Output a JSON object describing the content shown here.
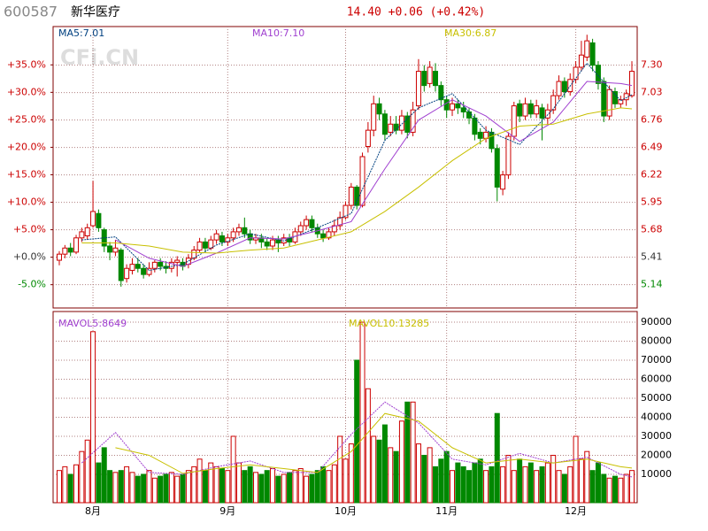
{
  "chart_data": {
    "type": "candlestick",
    "code": "600587",
    "name": "新华医疗",
    "quote": "14.40 +0.06 (+0.42%)",
    "watermark": "CFi.CN",
    "categories": [
      null,
      null,
      null,
      null,
      null,
      null,
      "8月",
      null,
      null,
      null,
      null,
      null,
      null,
      null,
      null,
      null,
      null,
      null,
      null,
      null,
      null,
      null,
      null,
      null,
      null,
      null,
      null,
      null,
      null,
      null,
      "9月",
      null,
      null,
      null,
      null,
      null,
      null,
      null,
      null,
      null,
      null,
      null,
      null,
      null,
      null,
      null,
      null,
      null,
      null,
      null,
      null,
      "10月",
      null,
      null,
      null,
      null,
      null,
      null,
      null,
      null,
      null,
      null,
      null,
      null,
      null,
      null,
      null,
      null,
      null,
      "11月",
      null,
      null,
      null,
      null,
      null,
      null,
      null,
      null,
      null,
      null,
      null,
      null,
      null,
      null,
      null,
      null,
      null,
      null,
      null,
      null,
      null,
      null,
      "12月",
      null,
      null,
      null,
      null,
      null,
      null,
      null,
      null,
      null,
      null
    ],
    "open": [
      5.38,
      5.44,
      5.5,
      5.46,
      5.6,
      5.62,
      5.72,
      5.84,
      5.68,
      5.52,
      5.46,
      5.48,
      5.2,
      5.28,
      5.34,
      5.3,
      5.24,
      5.3,
      5.36,
      5.32,
      5.3,
      5.36,
      5.36,
      5.34,
      5.4,
      5.48,
      5.56,
      5.5,
      5.58,
      5.62,
      5.56,
      5.6,
      5.66,
      5.7,
      5.64,
      5.58,
      5.6,
      5.56,
      5.52,
      5.58,
      5.55,
      5.6,
      5.56,
      5.66,
      5.72,
      5.78,
      5.7,
      5.64,
      5.6,
      5.66,
      5.72,
      5.8,
      5.92,
      6.1,
      5.92,
      6.5,
      6.66,
      6.92,
      6.82,
      6.64,
      6.72,
      6.66,
      6.8,
      6.64,
      6.9,
      7.24,
      7.12,
      7.24,
      7.1,
      6.96,
      6.86,
      6.92,
      6.88,
      6.84,
      6.78,
      6.64,
      6.58,
      6.64,
      6.48,
      6.08,
      6.22,
      6.6,
      6.92,
      6.8,
      6.92,
      6.82,
      6.88,
      6.78,
      6.86,
      7.0,
      7.14,
      7.04,
      7.16,
      7.28,
      7.38,
      7.52,
      7.3,
      7.14,
      6.8,
      7.04,
      6.92,
      6.96,
      7.0
    ],
    "high": [
      5.47,
      5.53,
      5.55,
      5.63,
      5.7,
      5.74,
      6.16,
      5.88,
      5.7,
      5.56,
      5.58,
      5.5,
      5.34,
      5.4,
      5.4,
      5.34,
      5.36,
      5.38,
      5.4,
      5.37,
      5.4,
      5.42,
      5.4,
      5.44,
      5.52,
      5.6,
      5.6,
      5.62,
      5.68,
      5.66,
      5.64,
      5.7,
      5.74,
      5.8,
      5.68,
      5.64,
      5.64,
      5.6,
      5.62,
      5.62,
      5.64,
      5.64,
      5.7,
      5.76,
      5.82,
      5.82,
      5.74,
      5.68,
      5.7,
      5.78,
      5.86,
      5.96,
      6.14,
      6.12,
      6.44,
      6.74,
      7.0,
      6.98,
      6.86,
      6.8,
      6.8,
      6.86,
      6.84,
      6.94,
      7.36,
      7.3,
      7.34,
      7.32,
      7.14,
      7.0,
      6.98,
      6.96,
      6.94,
      6.88,
      6.82,
      6.68,
      6.7,
      6.68,
      6.52,
      6.26,
      6.64,
      6.94,
      6.96,
      6.98,
      6.96,
      6.96,
      6.92,
      6.92,
      7.06,
      7.2,
      7.18,
      7.22,
      7.34,
      7.54,
      7.6,
      7.56,
      7.34,
      7.18,
      7.1,
      7.08,
      7.0,
      7.06,
      7.34
    ],
    "low": [
      5.33,
      5.4,
      5.42,
      5.44,
      5.56,
      5.58,
      5.7,
      5.66,
      5.46,
      5.38,
      5.42,
      5.12,
      5.16,
      5.24,
      5.26,
      5.2,
      5.22,
      5.26,
      5.28,
      5.25,
      5.26,
      5.22,
      5.28,
      5.3,
      5.38,
      5.46,
      5.46,
      5.48,
      5.54,
      5.52,
      5.52,
      5.56,
      5.62,
      5.6,
      5.54,
      5.54,
      5.5,
      5.48,
      5.48,
      5.46,
      5.52,
      5.52,
      5.54,
      5.62,
      5.68,
      5.66,
      5.6,
      5.56,
      5.58,
      5.62,
      5.68,
      5.78,
      5.88,
      5.88,
      5.9,
      6.44,
      6.6,
      6.76,
      6.56,
      6.6,
      6.62,
      6.62,
      6.58,
      6.6,
      6.86,
      7.04,
      7.08,
      7.04,
      6.9,
      6.78,
      6.8,
      6.82,
      6.78,
      6.72,
      6.56,
      6.52,
      6.54,
      6.44,
      5.96,
      6.02,
      6.18,
      6.56,
      6.74,
      6.76,
      6.78,
      6.78,
      6.56,
      6.72,
      6.82,
      6.96,
      6.98,
      7.0,
      7.12,
      7.24,
      7.34,
      7.24,
      7.06,
      6.74,
      6.76,
      6.88,
      6.88,
      6.9,
      6.98
    ],
    "close": [
      5.44,
      5.5,
      5.46,
      5.6,
      5.66,
      5.7,
      5.86,
      5.7,
      5.52,
      5.46,
      5.5,
      5.18,
      5.3,
      5.34,
      5.3,
      5.24,
      5.3,
      5.36,
      5.32,
      5.3,
      5.36,
      5.38,
      5.32,
      5.4,
      5.48,
      5.56,
      5.5,
      5.58,
      5.64,
      5.56,
      5.6,
      5.66,
      5.7,
      5.64,
      5.58,
      5.6,
      5.56,
      5.52,
      5.58,
      5.55,
      5.6,
      5.56,
      5.66,
      5.72,
      5.78,
      5.7,
      5.64,
      5.6,
      5.66,
      5.72,
      5.8,
      5.92,
      6.1,
      5.92,
      6.4,
      6.66,
      6.92,
      6.82,
      6.62,
      6.72,
      6.66,
      6.8,
      6.64,
      6.86,
      7.24,
      7.1,
      7.28,
      7.1,
      6.96,
      6.86,
      6.92,
      6.88,
      6.84,
      6.78,
      6.62,
      6.58,
      6.64,
      6.48,
      6.1,
      6.22,
      6.6,
      6.9,
      6.8,
      6.92,
      6.82,
      6.9,
      6.78,
      6.86,
      7.0,
      7.14,
      7.04,
      7.16,
      7.28,
      7.4,
      7.54,
      7.3,
      7.12,
      6.8,
      7.06,
      6.92,
      6.96,
      7.02,
      7.24
    ],
    "volume": [
      12000,
      14000,
      10000,
      15000,
      22000,
      28000,
      85000,
      16000,
      24000,
      12000,
      11000,
      12000,
      14000,
      11000,
      9000,
      10000,
      12000,
      8000,
      9000,
      10000,
      11000,
      9000,
      10000,
      12000,
      14000,
      18000,
      12000,
      16000,
      14000,
      13000,
      12000,
      30000,
      16000,
      12000,
      14000,
      11000,
      10000,
      12000,
      13000,
      9000,
      10000,
      11000,
      12000,
      13000,
      9000,
      10000,
      12000,
      14000,
      12000,
      15000,
      30000,
      18000,
      26000,
      70000,
      90000,
      55000,
      30000,
      28000,
      36000,
      24000,
      22000,
      38000,
      48000,
      48000,
      26000,
      20000,
      24000,
      14000,
      18000,
      22000,
      12000,
      16000,
      14000,
      12000,
      16000,
      18000,
      12000,
      14000,
      42000,
      14000,
      20000,
      12000,
      18000,
      14000,
      16000,
      12000,
      14000,
      16000,
      20000,
      12000,
      10000,
      14000,
      30000,
      18000,
      22000,
      12000,
      16000,
      10000,
      8000,
      9000,
      8000,
      10000,
      12000
    ],
    "up_color": "#cc0000",
    "down_color": "#008800",
    "ma": [
      {
        "name": "MA5:7.01",
        "color": "#004080",
        "x": [
          4,
          10,
          16,
          22,
          28,
          34,
          40,
          46,
          52,
          58,
          64,
          70,
          76,
          82,
          88,
          94,
          100,
          102
        ],
        "values": [
          5.58,
          5.61,
          5.28,
          5.34,
          5.53,
          5.64,
          5.57,
          5.7,
          5.84,
          6.56,
          6.88,
          7.02,
          6.66,
          6.52,
          6.87,
          7.32,
          6.95,
          7.01
        ]
      },
      {
        "name": "MA10:7.10",
        "color": "#a040d0",
        "x": [
          10,
          16,
          22,
          28,
          34,
          40,
          46,
          52,
          58,
          64,
          70,
          76,
          82,
          88,
          94,
          100,
          102
        ],
        "values": [
          5.58,
          5.4,
          5.32,
          5.45,
          5.6,
          5.59,
          5.67,
          5.76,
          6.28,
          6.76,
          6.96,
          6.8,
          6.55,
          6.74,
          7.14,
          7.12,
          7.1
        ]
      },
      {
        "name": "MA30:6.87",
        "color": "#c8c000",
        "x": [
          4,
          10,
          16,
          22,
          28,
          34,
          40,
          46,
          52,
          58,
          64,
          70,
          76,
          82,
          88,
          94,
          100,
          102
        ],
        "values": [
          5.55,
          5.55,
          5.52,
          5.46,
          5.45,
          5.48,
          5.5,
          5.58,
          5.66,
          5.86,
          6.1,
          6.36,
          6.58,
          6.7,
          6.72,
          6.82,
          6.88,
          6.87
        ]
      }
    ],
    "vol_ma": [
      {
        "name": "MAVOL5:8649",
        "color": "#a040d0",
        "x": [
          4,
          10,
          16,
          22,
          28,
          34,
          40,
          46,
          52,
          58,
          64,
          70,
          76,
          82,
          88,
          94,
          100,
          102
        ],
        "values": [
          16000,
          32000,
          11000,
          10000,
          14000,
          17000,
          11000,
          11000,
          31000,
          48000,
          37000,
          18000,
          15000,
          21000,
          16000,
          19000,
          10000,
          8649
        ]
      },
      {
        "name": "MAVOL10:13285",
        "color": "#c8c000",
        "x": [
          10,
          16,
          22,
          28,
          34,
          40,
          46,
          52,
          58,
          64,
          70,
          76,
          82,
          88,
          94,
          100,
          102
        ],
        "values": [
          24000,
          20000,
          10500,
          13000,
          15000,
          13000,
          11000,
          22000,
          42000,
          38000,
          24000,
          16000,
          18000,
          16000,
          18000,
          14000,
          13285
        ]
      }
    ],
    "ylim": [
      4.91,
      7.82
    ],
    "yticks": [
      {
        "value": 7.3,
        "label": "7.30"
      },
      7.03,
      6.76,
      6.49,
      6.22,
      5.95,
      5.68,
      5.41,
      5.14
    ],
    "ylim_pct": [
      -9.24,
      44.55
    ],
    "yticks_pct": [
      {
        "value": 35,
        "label": "+35.0%"
      },
      {
        "value": 30,
        "label": "+30.0%"
      },
      {
        "value": 25,
        "label": "+25.0%"
      },
      {
        "value": 20,
        "label": "+20.0%"
      },
      {
        "value": 15,
        "label": "+15.0%"
      },
      {
        "value": 10,
        "label": "+10.0%"
      },
      {
        "value": 5,
        "label": "+5.0%"
      },
      {
        "value": 0,
        "label": "+0.0%"
      },
      {
        "value": -5,
        "label": "-5.0%"
      }
    ],
    "vol_ylim": [
      -4900,
      95600
    ],
    "vol_yticks": [
      10000,
      20000,
      30000,
      40000,
      50000,
      60000,
      70000,
      80000,
      90000
    ],
    "grid": true
  }
}
